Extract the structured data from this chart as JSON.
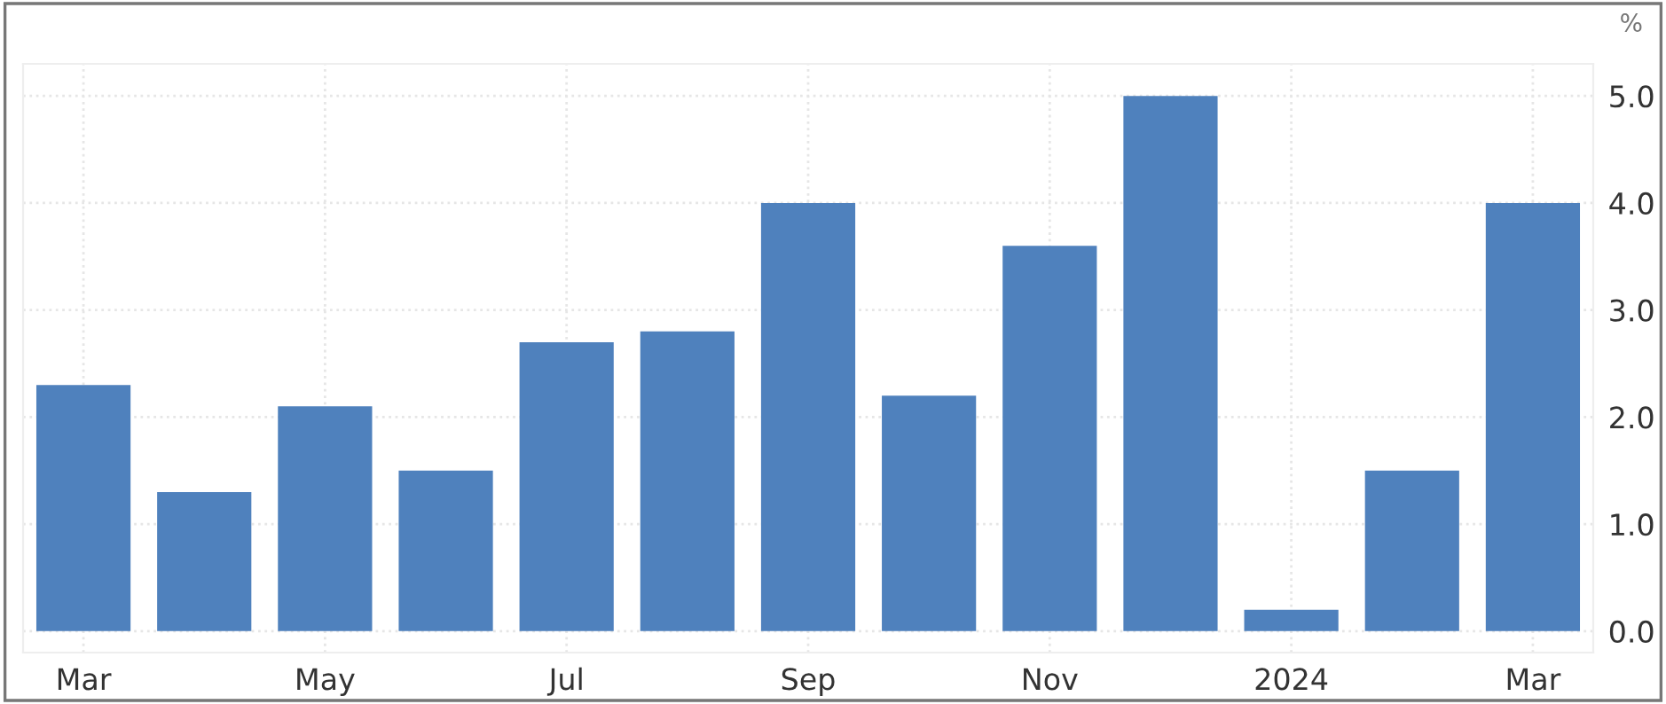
{
  "chart_data": {
    "type": "bar",
    "categories": [
      "Mar",
      null,
      "May",
      null,
      "Jul",
      null,
      "Sep",
      null,
      "Nov",
      null,
      "2024",
      null,
      "Mar"
    ],
    "values": [
      2.3,
      1.3,
      2.1,
      1.5,
      2.7,
      2.8,
      4.0,
      2.2,
      3.6,
      5.0,
      0.2,
      1.5,
      4.0
    ],
    "color": "#4f81bd",
    "ylabel": "%",
    "ylim": [
      -0.2,
      5.3
    ],
    "yticks": [
      {
        "value": 0,
        "label": "0.0"
      },
      {
        "value": 1,
        "label": "1.0"
      },
      {
        "value": 2,
        "label": "2.0"
      },
      {
        "value": 3,
        "label": "3.0"
      },
      {
        "value": 4,
        "label": "4.0"
      },
      {
        "value": 5,
        "label": "5.0"
      }
    ],
    "grid": true
  }
}
